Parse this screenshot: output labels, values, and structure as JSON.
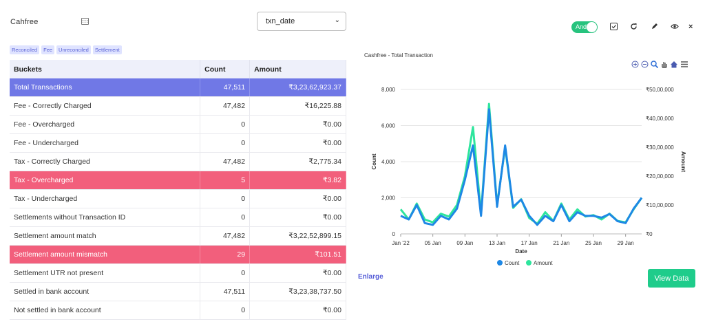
{
  "header": {
    "brand": "Cahfree",
    "date_field": "txn_date",
    "toggle_label": "And"
  },
  "tags": [
    "Reconciled",
    "Fee",
    "Unreconciled",
    "Settlement"
  ],
  "table": {
    "columns": [
      "Buckets",
      "Count",
      "Amount"
    ],
    "rows": [
      {
        "bucket": "Total Transactions",
        "count": "47,511",
        "amount": "₹3,23,62,923.37",
        "status": "total"
      },
      {
        "bucket": "Fee - Correctly Charged",
        "count": "47,482",
        "amount": "₹16,225.88",
        "status": "normal"
      },
      {
        "bucket": "Fee - Overcharged",
        "count": "0",
        "amount": "₹0.00",
        "status": "normal"
      },
      {
        "bucket": "Fee - Undercharged",
        "count": "0",
        "amount": "₹0.00",
        "status": "normal"
      },
      {
        "bucket": "Tax - Correctly Charged",
        "count": "47,482",
        "amount": "₹2,775.34",
        "status": "normal"
      },
      {
        "bucket": "Tax - Overcharged",
        "count": "5",
        "amount": "₹3.82",
        "status": "bad"
      },
      {
        "bucket": "Tax - Undercharged",
        "count": "0",
        "amount": "₹0.00",
        "status": "normal"
      },
      {
        "bucket": "Settlements without Transaction ID",
        "count": "0",
        "amount": "₹0.00",
        "status": "normal"
      },
      {
        "bucket": "Settlement amount match",
        "count": "47,482",
        "amount": "₹3,22,52,899.15",
        "status": "normal"
      },
      {
        "bucket": "Settlement amount mismatch",
        "count": "29",
        "amount": "₹101.51",
        "status": "bad"
      },
      {
        "bucket": "Settlement UTR not present",
        "count": "0",
        "amount": "₹0.00",
        "status": "normal"
      },
      {
        "bucket": "Settled in bank account",
        "count": "47,511",
        "amount": "₹3,23,38,737.50",
        "status": "normal"
      },
      {
        "bucket": "Not settled in bank account",
        "count": "0",
        "amount": "₹0.00",
        "status": "normal"
      }
    ]
  },
  "toolbar_icons": [
    "checkbox-icon",
    "refresh-icon",
    "pencil-icon",
    "eye-icon",
    "close-icon"
  ],
  "chart_tools": [
    "zoom-in-icon",
    "zoom-out-icon",
    "zoom-icon",
    "pan-icon",
    "home-icon",
    "menu-icon"
  ],
  "chart_data": {
    "type": "line",
    "title": "Cashfree - Total Transaction",
    "xlabel": "Date",
    "ylabel": "Count",
    "y2label": "Amount",
    "x_ticks": [
      "Jan '22",
      "05 Jan",
      "09 Jan",
      "13 Jan",
      "17 Jan",
      "21 Jan",
      "25 Jan",
      "29 Jan"
    ],
    "x": [
      "2022-01-01",
      "2022-01-02",
      "2022-01-03",
      "2022-01-04",
      "2022-01-05",
      "2022-01-06",
      "2022-01-07",
      "2022-01-08",
      "2022-01-09",
      "2022-01-10",
      "2022-01-11",
      "2022-01-12",
      "2022-01-13",
      "2022-01-14",
      "2022-01-15",
      "2022-01-16",
      "2022-01-17",
      "2022-01-18",
      "2022-01-19",
      "2022-01-20",
      "2022-01-21",
      "2022-01-22",
      "2022-01-23",
      "2022-01-24",
      "2022-01-25",
      "2022-01-26",
      "2022-01-27",
      "2022-01-28",
      "2022-01-29",
      "2022-01-30",
      "2022-01-31"
    ],
    "ylim": [
      0,
      8000
    ],
    "y_ticks": [
      "0",
      "2,000",
      "4,000",
      "6,000",
      "8,000"
    ],
    "y2lim": [
      0,
      5000000
    ],
    "y2_ticks": [
      "₹0",
      "₹10,00,000",
      "₹20,00,000",
      "₹30,00,000",
      "₹40,00,000",
      "₹50,00,000"
    ],
    "series": [
      {
        "name": "Count",
        "axis": "left",
        "color": "#1e88e5",
        "values": [
          1000,
          800,
          1600,
          600,
          500,
          1000,
          800,
          1400,
          3000,
          4900,
          1000,
          6900,
          1500,
          4900,
          1500,
          1900,
          1000,
          500,
          1000,
          700,
          1600,
          700,
          1200,
          1000,
          1000,
          900,
          1100,
          700,
          600,
          1400,
          2000
        ]
      },
      {
        "name": "Amount",
        "axis": "right",
        "color": "#2ee59d",
        "values": [
          850000,
          500000,
          1050000,
          500000,
          400000,
          700000,
          600000,
          1000000,
          2000000,
          3700000,
          700000,
          4500000,
          1000000,
          3000000,
          900000,
          1200000,
          550000,
          350000,
          750000,
          450000,
          1050000,
          500000,
          850000,
          600000,
          650000,
          500000,
          700000,
          450000,
          400000,
          850000,
          1250000
        ]
      }
    ],
    "legend": "bottom",
    "grid": "horizontal"
  },
  "enlarge_label": "Enlarge",
  "view_data_label": "View Data"
}
